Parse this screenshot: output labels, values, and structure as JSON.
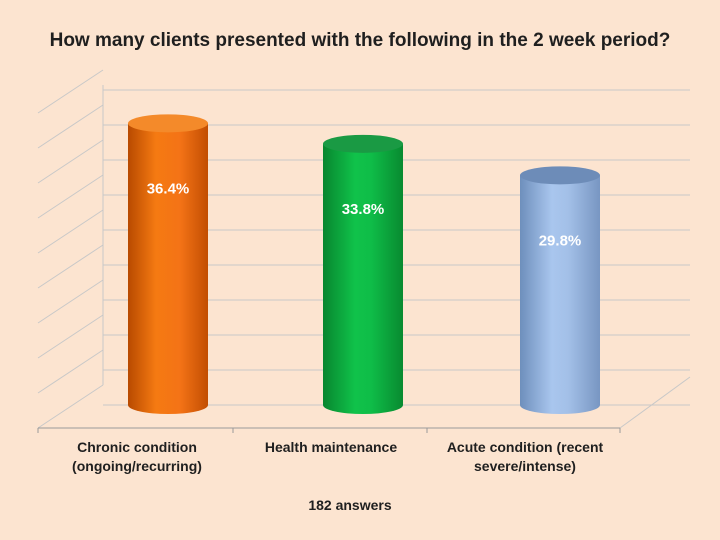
{
  "chart_data": {
    "type": "bar",
    "title": "How many clients presented with the following in the 2 week period?",
    "categories": [
      "Chronic condition\n(ongoing/recurring)",
      "Health maintenance",
      "Acute condition (recent\nsevere/intense)"
    ],
    "values": [
      36.4,
      33.8,
      29.8
    ],
    "value_labels": [
      "36.4%",
      "33.8%",
      "29.8%"
    ],
    "bar_colors": [
      "#f07010",
      "#10b040",
      "#9ab8e0"
    ],
    "ylim": [
      0,
      40
    ],
    "grid": true,
    "style": "3d-cylinder",
    "footnote": "182 answers"
  }
}
